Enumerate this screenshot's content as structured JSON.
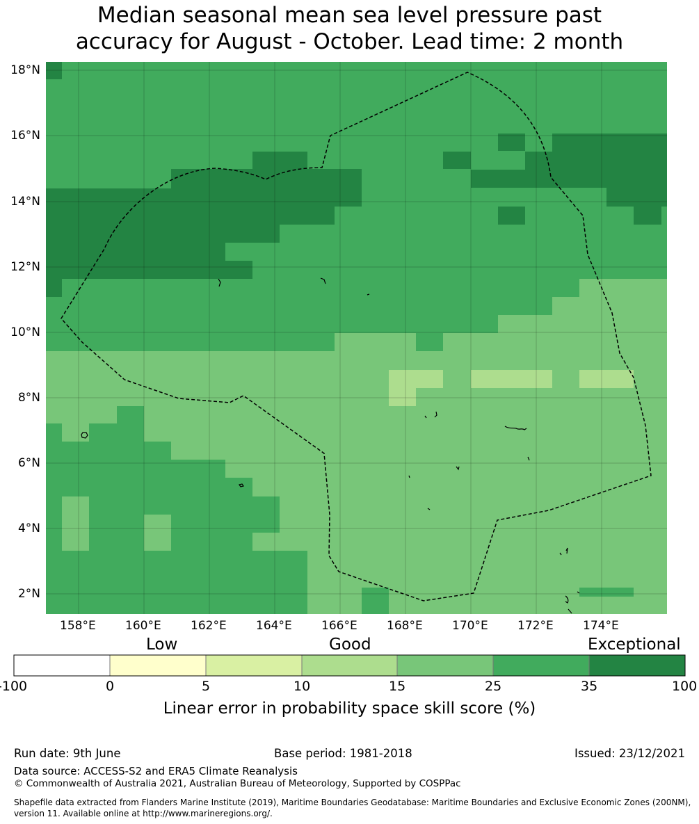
{
  "title_line1": "Median seasonal mean sea level pressure past",
  "title_line2": "accuracy for August - October. Lead time: 2 month",
  "lat_labels": [
    "18°N",
    "16°N",
    "14°N",
    "12°N",
    "10°N",
    "8°N",
    "6°N",
    "4°N",
    "2°N"
  ],
  "lon_labels": [
    "158°E",
    "160°E",
    "162°E",
    "164°E",
    "166°E",
    "168°E",
    "170°E",
    "172°E",
    "174°E"
  ],
  "colorbar": {
    "words": {
      "low": "Low",
      "good": "Good",
      "exceptional": "Exceptional"
    },
    "bounds": [
      "-100",
      "0",
      "5",
      "10",
      "15",
      "25",
      "35",
      "100"
    ],
    "colors": [
      "#ffffff",
      "#ffffcc",
      "#d9f0a3",
      "#addd8e",
      "#78c679",
      "#41ab5d",
      "#238443"
    ],
    "title": "Linear error in probability space skill score (%)"
  },
  "footer": {
    "run_date": "Run date: 9th June",
    "base_period": "Base period: 1981-2018",
    "issued": "Issued: 23/12/2021",
    "data_source": "Data source: ACCESS-S2 and ERA5 Climate Reanalysis",
    "copyright": "© Commonwealth of Australia 2021, Australian Bureau of Meteorology, Supported by COSPPac",
    "shapefile_line1": "Shapefile data extracted from Flanders Marine Institute (2019), Maritime Boundaries Geodatabase: Maritime Boundaries and Exclusive Economic Zones (200NM),",
    "shapefile_line2": "version 11. Available online at http://www.marineregions.org/."
  }
}
